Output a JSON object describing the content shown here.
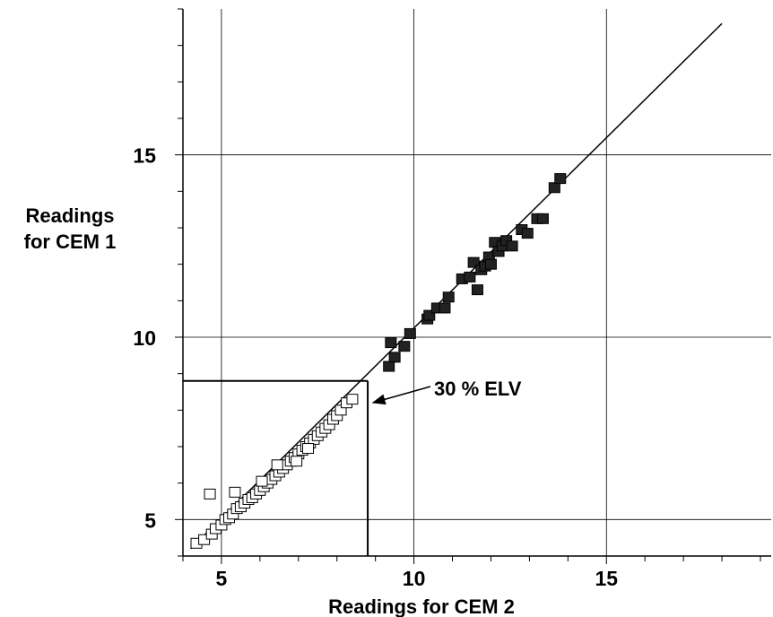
{
  "chart_data": {
    "type": "scatter",
    "title": "",
    "xlabel": "Readings for CEM 2",
    "ylabel_line1": "Readings",
    "ylabel_line2": "for CEM 1",
    "xlim": [
      4,
      19
    ],
    "ylim": [
      4,
      19
    ],
    "xticks": [
      5,
      10,
      15
    ],
    "yticks": [
      5,
      10,
      15
    ],
    "grid": true,
    "annotation": {
      "text": "30 % ELV",
      "value": 8.8
    },
    "reference_line": {
      "from": [
        4.2,
        4.2
      ],
      "to": [
        18,
        18.6
      ]
    },
    "series": [
      {
        "marker": "open-square",
        "points": [
          [
            4.35,
            4.35
          ],
          [
            4.55,
            4.45
          ],
          [
            4.75,
            4.6
          ],
          [
            4.85,
            4.75
          ],
          [
            5.0,
            4.85
          ],
          [
            5.1,
            5.0
          ],
          [
            5.2,
            5.05
          ],
          [
            5.3,
            5.15
          ],
          [
            5.4,
            5.3
          ],
          [
            5.5,
            5.35
          ],
          [
            5.6,
            5.45
          ],
          [
            5.7,
            5.55
          ],
          [
            5.8,
            5.6
          ],
          [
            5.9,
            5.7
          ],
          [
            6.0,
            5.8
          ],
          [
            6.1,
            5.9
          ],
          [
            6.2,
            6.0
          ],
          [
            6.3,
            6.1
          ],
          [
            6.4,
            6.2
          ],
          [
            6.5,
            6.3
          ],
          [
            6.6,
            6.4
          ],
          [
            6.7,
            6.5
          ],
          [
            6.8,
            6.6
          ],
          [
            6.9,
            6.7
          ],
          [
            7.0,
            6.8
          ],
          [
            7.1,
            6.9
          ],
          [
            7.2,
            7.0
          ],
          [
            7.3,
            7.1
          ],
          [
            7.4,
            7.2
          ],
          [
            7.5,
            7.3
          ],
          [
            7.6,
            7.4
          ],
          [
            7.7,
            7.5
          ],
          [
            7.8,
            7.6
          ],
          [
            7.9,
            7.75
          ],
          [
            8.0,
            7.85
          ],
          [
            8.1,
            8.0
          ],
          [
            8.25,
            8.2
          ],
          [
            8.4,
            8.3
          ],
          [
            5.35,
            5.75
          ],
          [
            4.7,
            5.7
          ],
          [
            6.95,
            6.6
          ],
          [
            7.25,
            6.95
          ],
          [
            6.05,
            6.05
          ],
          [
            6.45,
            6.5
          ]
        ]
      },
      {
        "marker": "filled-square",
        "points": [
          [
            9.35,
            9.2
          ],
          [
            9.5,
            9.45
          ],
          [
            9.4,
            9.85
          ],
          [
            9.75,
            9.75
          ],
          [
            9.9,
            10.1
          ],
          [
            10.35,
            10.5
          ],
          [
            10.4,
            10.6
          ],
          [
            10.6,
            10.8
          ],
          [
            10.8,
            10.8
          ],
          [
            10.9,
            11.1
          ],
          [
            11.25,
            11.6
          ],
          [
            11.45,
            11.65
          ],
          [
            11.55,
            12.05
          ],
          [
            11.65,
            11.3
          ],
          [
            11.75,
            11.85
          ],
          [
            11.85,
            11.95
          ],
          [
            11.95,
            12.2
          ],
          [
            12.0,
            12.0
          ],
          [
            12.1,
            12.6
          ],
          [
            12.2,
            12.35
          ],
          [
            12.3,
            12.5
          ],
          [
            12.4,
            12.65
          ],
          [
            12.55,
            12.5
          ],
          [
            12.8,
            12.95
          ],
          [
            12.95,
            12.85
          ],
          [
            13.2,
            13.25
          ],
          [
            13.35,
            13.25
          ],
          [
            13.65,
            14.1
          ],
          [
            13.8,
            14.35
          ]
        ]
      }
    ]
  }
}
